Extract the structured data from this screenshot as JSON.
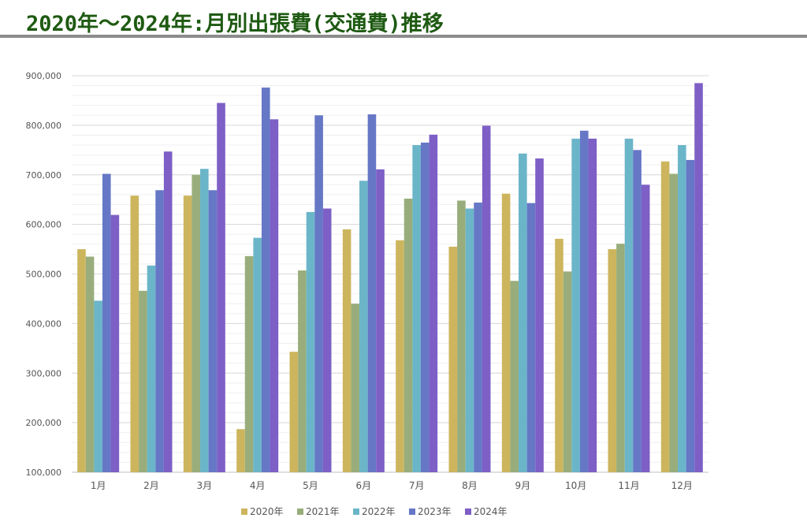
{
  "page": {
    "title": "2020年～2024年:月別出張費(交通費)推移"
  },
  "chart_data": {
    "type": "bar",
    "title": "",
    "xlabel": "",
    "ylabel": "",
    "categories": [
      "1月",
      "2月",
      "3月",
      "4月",
      "5月",
      "6月",
      "7月",
      "8月",
      "9月",
      "10月",
      "11月",
      "12月"
    ],
    "series": [
      {
        "name": "2020年",
        "color": "#cdb55e",
        "values": [
          550000,
          658000,
          658000,
          187000,
          343000,
          590000,
          568000,
          555000,
          662000,
          571000,
          550000,
          727000
        ]
      },
      {
        "name": "2021年",
        "color": "#98ad7b",
        "values": [
          535000,
          466000,
          700000,
          536000,
          507000,
          440000,
          652000,
          648000,
          486000,
          505000,
          561000,
          702000
        ]
      },
      {
        "name": "2022年",
        "color": "#6bb5c9",
        "values": [
          446000,
          517000,
          712000,
          573000,
          625000,
          688000,
          760000,
          632000,
          743000,
          773000,
          773000,
          760000
        ]
      },
      {
        "name": "2023年",
        "color": "#6677c6",
        "values": [
          702000,
          669000,
          669000,
          876000,
          820000,
          822000,
          765000,
          644000,
          643000,
          789000,
          750000,
          730000
        ]
      },
      {
        "name": "2024年",
        "color": "#7d5fc6",
        "values": [
          619000,
          747000,
          845000,
          812000,
          632000,
          711000,
          781000,
          799000,
          733000,
          773000,
          680000,
          885000
        ]
      }
    ],
    "ylim": [
      100000,
      900000
    ],
    "yticks": [
      100000,
      200000,
      300000,
      400000,
      500000,
      600000,
      700000,
      800000,
      900000
    ],
    "ytick_labels": [
      "100,000",
      "200,000",
      "300,000",
      "400,000",
      "500,000",
      "600,000",
      "700,000",
      "800,000",
      "900,000"
    ],
    "grid": true,
    "legend_position": "bottom"
  }
}
